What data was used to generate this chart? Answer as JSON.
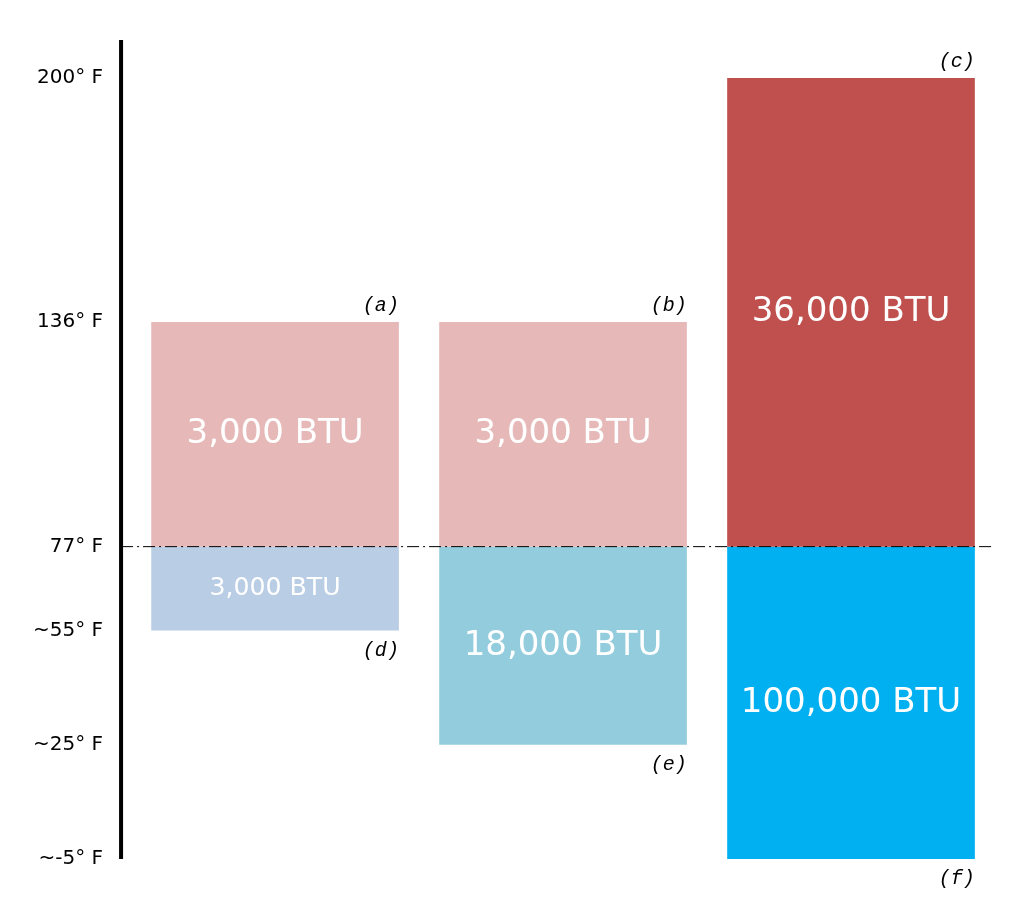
{
  "chart_data": {
    "type": "bar",
    "categories": [
      null,
      null,
      null
    ],
    "series": [
      {
        "colors": [
          "#e6b9b8",
          "#e6b9b8",
          "#c0504d"
        ],
        "base": [
          77,
          77,
          77
        ],
        "values": [
          59,
          59,
          123
        ]
      },
      {
        "colors": [
          "#b9cde5",
          "#93cddd",
          "#00b0f0"
        ],
        "base": [
          55,
          25,
          -5
        ],
        "values": [
          22,
          52,
          82
        ]
      }
    ],
    "ylim": [
      -5,
      210
    ],
    "yticks": [
      {
        "value": -5,
        "label": "~-5° F"
      },
      {
        "value": 25,
        "label": "~25° F"
      },
      {
        "value": 55,
        "label": "~55° F"
      },
      {
        "value": 77,
        "label": "77° F"
      },
      {
        "value": 136,
        "label": "136° F"
      },
      {
        "value": 200,
        "label": "200° F"
      }
    ],
    "ref_lines": [
      {
        "axis": "y",
        "value": 77,
        "line_style": "dashed",
        "color": "#000000"
      }
    ],
    "annotations": [
      {
        "text": "(a)",
        "y": 136
      },
      {
        "text": "(b)",
        "y": 136
      },
      {
        "text": "(c)",
        "y": 200
      },
      {
        "text": "(d)",
        "y": 55
      },
      {
        "text": "(e)",
        "y": 25
      },
      {
        "text": "(f)",
        "y": -5
      },
      "3,000 BTU",
      "3,000 BTU",
      "36,000 BTU",
      "3,000 BTU",
      "18,000 BTU",
      "100,000 BTU"
    ],
    "grid": false,
    "legend": false
  }
}
